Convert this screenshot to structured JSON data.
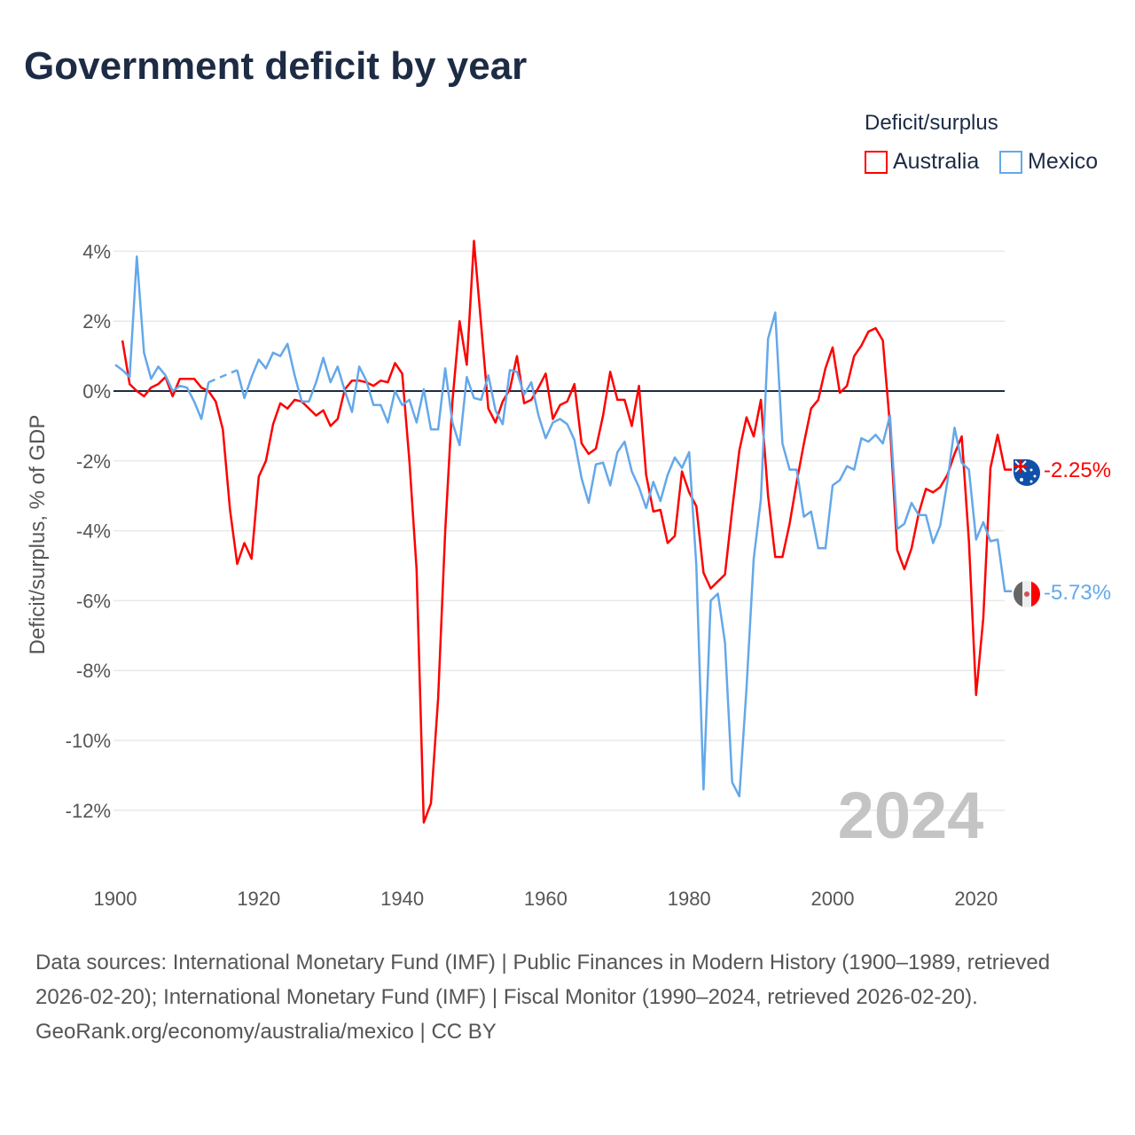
{
  "chart_data": {
    "type": "line",
    "title": "Government deficit by year",
    "ylabel": "Deficit/surplus, % of GDP",
    "xlabel": "",
    "ylim": [
      -12.9,
      4.5
    ],
    "xlim": [
      1900,
      2024
    ],
    "yticks": [
      4,
      2,
      0,
      -2,
      -4,
      -6,
      -8,
      -10,
      -12
    ],
    "ytick_labels": [
      "4%",
      "2%",
      "0%",
      "-2%",
      "-4%",
      "-6%",
      "-8%",
      "-10%",
      "-12%"
    ],
    "xticks": [
      1900,
      1920,
      1940,
      1960,
      1980,
      2000,
      2020
    ],
    "xtick_labels": [
      "1900",
      "1920",
      "1940",
      "1960",
      "1980",
      "2000",
      "2020"
    ],
    "grid": true,
    "legend_title": "Deficit/surplus",
    "legend_position": "top-right",
    "year_watermark": "2024",
    "series": [
      {
        "name": "Australia",
        "color": "#ff0000",
        "end_label": "-2.25%",
        "start": 1901,
        "values": [
          1.45,
          0.2,
          0,
          -0.15,
          0.1,
          0.2,
          0.4,
          -0.15,
          0.35,
          0.35,
          0.35,
          0.1,
          0,
          -0.3,
          -1.1,
          -3.4,
          -4.95,
          -4.35,
          -4.8,
          -2.45,
          -2.0,
          -0.95,
          -0.35,
          -0.5,
          -0.25,
          -0.3,
          -0.5,
          -0.7,
          -0.55,
          -1.0,
          -0.8,
          0.05,
          0.3,
          0.3,
          0.25,
          0.15,
          0.3,
          0.25,
          0.8,
          0.5,
          -2.0,
          -5.1,
          -12.35,
          -11.8,
          -8.8,
          -4.0,
          -0.3,
          2.0,
          0.75,
          4.3,
          1.9,
          -0.5,
          -0.9,
          -0.3,
          0.05,
          1.0,
          -0.35,
          -0.25,
          0.1,
          0.5,
          -0.8,
          -0.4,
          -0.3,
          0.2,
          -1.5,
          -1.8,
          -1.65,
          -0.7,
          0.55,
          -0.25,
          -0.25,
          -1.0,
          0.15,
          -2.4,
          -3.45,
          -3.4,
          -4.35,
          -4.15,
          -2.3,
          -2.9,
          -3.3,
          -5.2,
          -5.65,
          -5.45,
          -5.25,
          -3.4,
          -1.7,
          -0.75,
          -1.3,
          -0.25,
          -3.0,
          -4.75,
          -4.75,
          -3.8,
          -2.6,
          -1.5,
          -0.5,
          -0.25,
          0.65,
          1.25,
          -0.05,
          0.15,
          1.0,
          1.3,
          1.7,
          1.8,
          1.45,
          -1.0,
          -4.55,
          -5.1,
          -4.5,
          -3.5,
          -2.8,
          -2.9,
          -2.75,
          -2.4,
          -1.8,
          -1.3,
          -4.3,
          -8.7,
          -6.5,
          -2.2,
          -1.25,
          -2.25
        ]
      },
      {
        "name": "Mexico",
        "color": "#64a8ea",
        "end_label": "-5.73%",
        "start": 1900,
        "values": [
          0.75,
          0.6,
          0.4,
          3.85,
          1.1,
          0.35,
          0.7,
          0.45,
          0,
          0.15,
          0.1,
          -0.3,
          -0.8,
          0.25,
          null,
          null,
          null,
          0.6,
          -0.2,
          0.4,
          0.9,
          0.65,
          1.1,
          1.0,
          1.35,
          0.45,
          -0.3,
          -0.3,
          0.25,
          0.95,
          0.25,
          0.7,
          0,
          -0.6,
          0.7,
          0.3,
          -0.4,
          -0.4,
          -0.9,
          0,
          -0.4,
          -0.25,
          -0.9,
          0.05,
          -1.1,
          -1.1,
          0.65,
          -0.9,
          -1.55,
          0.4,
          -0.2,
          -0.25,
          0.45,
          -0.55,
          -0.95,
          0.6,
          0.55,
          -0.1,
          0.25,
          -0.7,
          -1.35,
          -0.9,
          -0.8,
          -0.95,
          -1.4,
          -2.5,
          -3.2,
          -2.1,
          -2.05,
          -2.7,
          -1.75,
          -1.45,
          -2.3,
          -2.75,
          -3.35,
          -2.6,
          -3.15,
          -2.4,
          -1.9,
          -2.2,
          -1.75,
          -5.0,
          -11.4,
          -6.0,
          -5.8,
          -7.2,
          -11.2,
          -11.6,
          -8.5,
          -4.8,
          -3.1,
          1.5,
          2.25,
          -1.5,
          -2.25,
          -2.25,
          -3.6,
          -3.45,
          -4.5,
          -4.5,
          -2.7,
          -2.55,
          -2.15,
          -2.25,
          -1.35,
          -1.45,
          -1.25,
          -1.5,
          -0.7,
          -3.95,
          -3.8,
          -3.2,
          -3.55,
          -3.55,
          -4.35,
          -3.85,
          -2.6,
          -1.05,
          -2.05,
          -2.25,
          -4.25,
          -3.75,
          -4.3,
          -4.25,
          -5.73
        ]
      }
    ]
  },
  "footer": {
    "sources": "Data sources: International Monetary Fund (IMF) | Public Finances in Modern History (1900–1989, retrieved 2026-02-20); International Monetary Fund (IMF) | Fiscal Monitor (1990–2024, retrieved 2026-02-20).",
    "attribution": "GeoRank.org/economy/australia/mexico | CC BY"
  }
}
